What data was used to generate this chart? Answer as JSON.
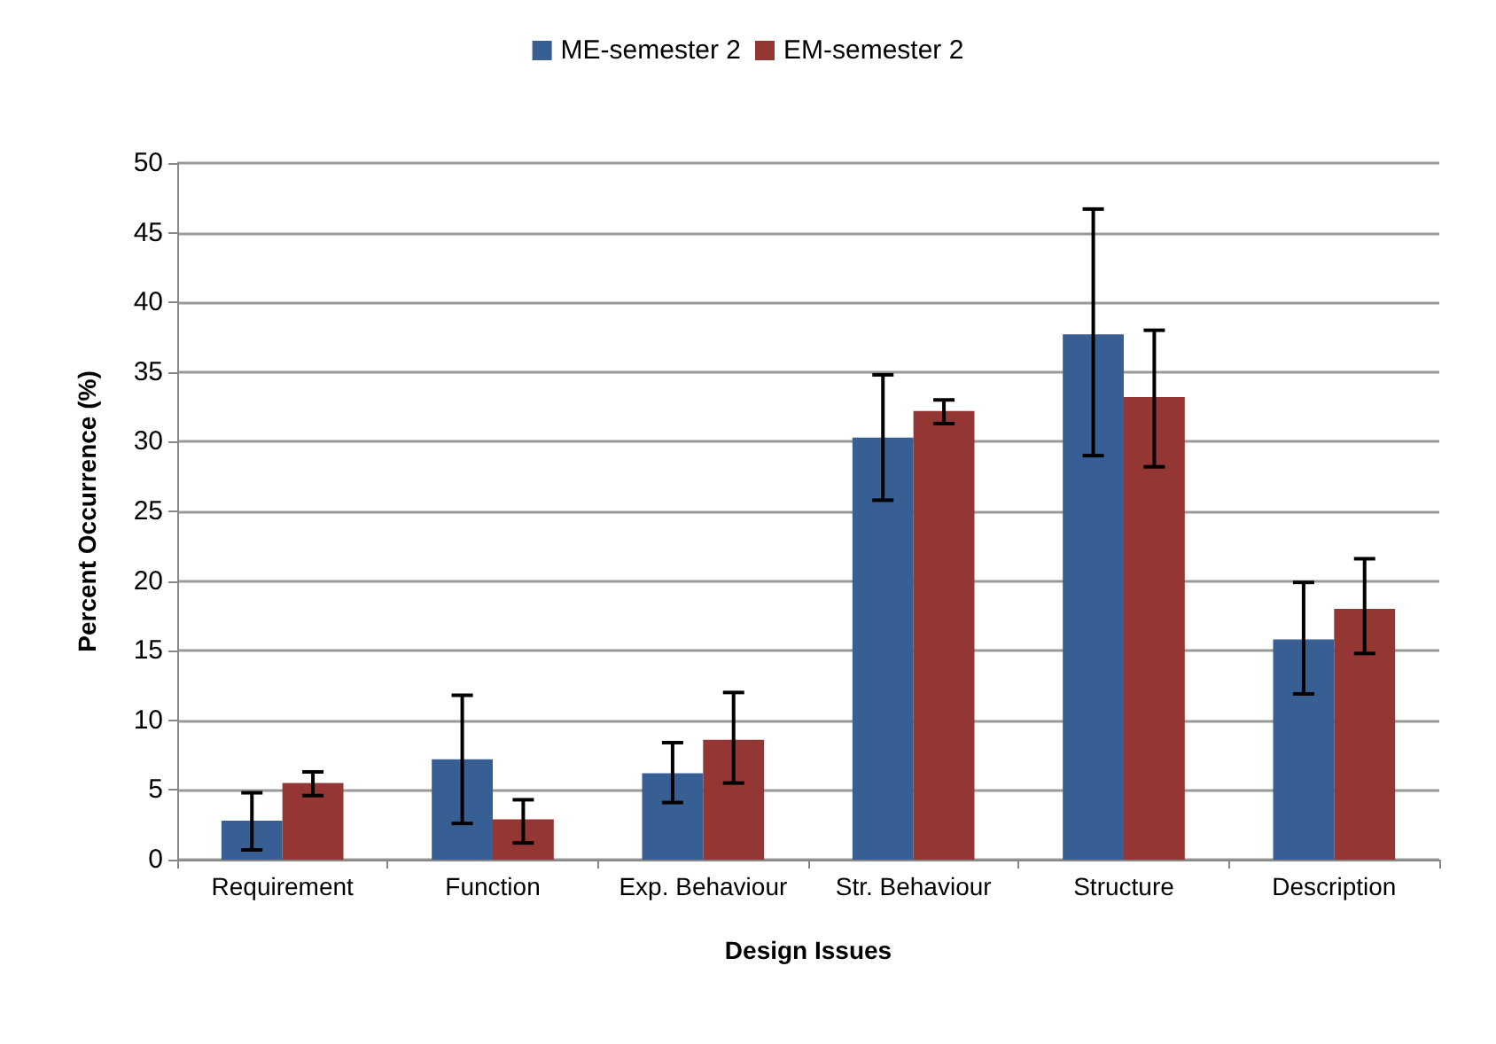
{
  "chart_data": {
    "type": "bar",
    "xlabel": "Design Issues",
    "ylabel": "Percent Occurrence (%)",
    "categories": [
      "Requirement",
      "Function",
      "Exp. Behaviour",
      "Str. Behaviour",
      "Structure",
      "Description"
    ],
    "series": [
      {
        "name": "ME-semester 2",
        "color": "#385f93",
        "values": [
          2.8,
          7.2,
          6.2,
          30.3,
          37.7,
          15.8
        ],
        "errors": [
          [
            0.7,
            4.8
          ],
          [
            2.6,
            11.8
          ],
          [
            4.1,
            8.4
          ],
          [
            25.8,
            34.8
          ],
          [
            29.0,
            46.7
          ],
          [
            11.9,
            19.9
          ]
        ]
      },
      {
        "name": "EM-semester 2",
        "color": "#943634",
        "values": [
          5.5,
          2.9,
          8.6,
          32.2,
          33.2,
          18.0
        ],
        "errors": [
          [
            4.6,
            6.3
          ],
          [
            1.2,
            4.3
          ],
          [
            5.5,
            12.0
          ],
          [
            31.3,
            33.0
          ],
          [
            28.2,
            38.0
          ],
          [
            14.8,
            21.6
          ]
        ]
      }
    ],
    "ylim": [
      0,
      50
    ],
    "yticks": [
      0,
      5,
      10,
      15,
      20,
      25,
      30,
      35,
      40,
      45,
      50
    ],
    "grid": "y",
    "legend": "top"
  }
}
